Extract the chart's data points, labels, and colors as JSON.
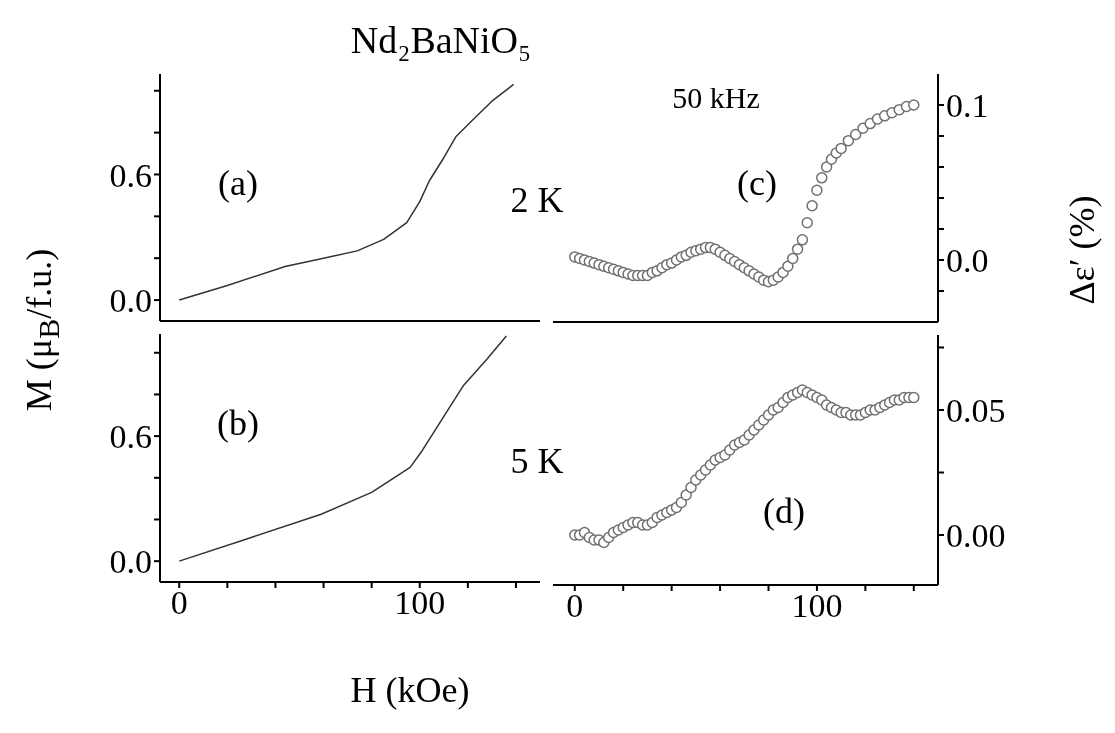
{
  "chart_data": [
    {
      "type": "line",
      "title": "Nd₂BaNiO₅",
      "ylabel": "M (μ$_{B}$/f.u.)",
      "annotations": [
        "(a)",
        "2 K"
      ],
      "tick_labels": "y",
      "marker": "none",
      "line_style": "solid",
      "x": [
        0,
        20,
        44,
        60,
        74,
        85,
        94.6,
        100,
        104,
        110,
        115,
        122,
        130,
        139
      ],
      "series": [
        {
          "color": "#333333",
          "values": [
            0,
            0.07,
            0.16,
            0.2,
            0.235,
            0.29,
            0.37,
            0.47,
            0.57,
            0.68,
            0.78,
            0.86,
            0.95,
            1.03
          ]
        }
      ],
      "xlim": [
        -8,
        150
      ],
      "xticks": [
        {
          "value": 0,
          "label": null
        },
        {
          "value": 20,
          "label": null
        },
        {
          "value": 40,
          "label": null
        },
        {
          "value": 60,
          "label": null
        },
        {
          "value": 80,
          "label": null
        },
        {
          "value": 100,
          "label": null
        },
        {
          "value": 120,
          "label": null
        },
        {
          "value": 140,
          "label": null
        }
      ],
      "ylim": [
        -0.1,
        1.08
      ],
      "yticks": [
        {
          "value": 0,
          "label": "0.0"
        },
        {
          "value": 0.2,
          "label": null
        },
        {
          "value": 0.4,
          "label": null
        },
        {
          "value": 0.6,
          "label": "0.6"
        },
        {
          "value": 0.8,
          "label": null
        },
        {
          "value": 1.0,
          "label": null
        }
      ]
    },
    {
      "type": "scatter",
      "ylabel": "Δε′ (%)",
      "annotations": [
        "50 kHz",
        "(c)"
      ],
      "tick_labels": "y",
      "marker": "circle",
      "x": [
        0,
        2,
        4,
        6,
        8,
        10,
        12,
        14,
        16,
        18,
        20,
        22,
        24,
        26,
        28,
        30,
        32,
        34,
        36,
        38,
        40,
        42,
        44,
        46,
        48,
        50,
        52,
        54,
        56,
        58,
        60,
        62,
        64,
        66,
        68,
        70,
        72,
        74,
        76,
        78,
        80,
        82,
        84,
        86,
        88,
        90,
        92,
        94,
        96,
        98,
        100,
        102,
        104,
        106,
        108,
        110,
        113,
        116,
        119,
        122,
        125,
        128,
        131,
        134,
        137,
        140
      ],
      "series": [
        {
          "color": "#707070",
          "values": [
            0.002,
            0.001,
            0.0,
            -0.001,
            -0.002,
            -0.003,
            -0.004,
            -0.005,
            -0.006,
            -0.007,
            -0.008,
            -0.009,
            -0.01,
            -0.01,
            -0.01,
            -0.01,
            -0.008,
            -0.007,
            -0.005,
            -0.003,
            -0.002,
            0.0,
            0.002,
            0.003,
            0.005,
            0.006,
            0.007,
            0.008,
            0.008,
            0.007,
            0.005,
            0.003,
            0.001,
            -0.001,
            -0.003,
            -0.005,
            -0.007,
            -0.009,
            -0.011,
            -0.013,
            -0.014,
            -0.013,
            -0.011,
            -0.008,
            -0.004,
            0.001,
            0.007,
            0.013,
            0.024,
            0.035,
            0.045,
            0.053,
            0.06,
            0.065,
            0.069,
            0.072,
            0.077,
            0.081,
            0.085,
            0.088,
            0.091,
            0.093,
            0.095,
            0.097,
            0.099,
            0.1
          ]
        }
      ],
      "xlim": [
        -9,
        150
      ],
      "xticks": [
        {
          "value": 0,
          "label": null
        },
        {
          "value": 20,
          "label": null
        },
        {
          "value": 40,
          "label": null
        },
        {
          "value": 60,
          "label": null
        },
        {
          "value": 80,
          "label": null
        },
        {
          "value": 100,
          "label": null
        },
        {
          "value": 120,
          "label": null
        },
        {
          "value": 140,
          "label": null
        }
      ],
      "ylim": [
        -0.04,
        0.12
      ],
      "yticks": [
        {
          "value": -0.02,
          "label": null
        },
        {
          "value": 0,
          "label": "0.0"
        },
        {
          "value": 0.02,
          "label": null
        },
        {
          "value": 0.04,
          "label": null
        },
        {
          "value": 0.06,
          "label": null
        },
        {
          "value": 0.08,
          "label": null
        },
        {
          "value": 0.1,
          "label": "0.1"
        }
      ]
    },
    {
      "type": "line",
      "xlabel": "H (kOe)",
      "annotations": [
        "(b)",
        "5 K"
      ],
      "marker": "none",
      "line_style": "solid",
      "x": [
        0,
        29,
        59,
        80,
        96,
        101,
        107,
        118,
        128,
        136
      ],
      "series": [
        {
          "color": "#333333",
          "values": [
            0,
            0.11,
            0.225,
            0.33,
            0.45,
            0.53,
            0.64,
            0.84,
            0.97,
            1.08
          ]
        }
      ],
      "xlim": [
        -8,
        150
      ],
      "xticks": [
        {
          "value": 0,
          "label": "0"
        },
        {
          "value": 20,
          "label": null
        },
        {
          "value": 40,
          "label": null
        },
        {
          "value": 60,
          "label": null
        },
        {
          "value": 80,
          "label": null
        },
        {
          "value": 100,
          "label": "100"
        },
        {
          "value": 120,
          "label": null
        },
        {
          "value": 140,
          "label": null
        }
      ],
      "ylim": [
        -0.1,
        1.09
      ],
      "yticks": [
        {
          "value": 0,
          "label": "0.0"
        },
        {
          "value": 0.2,
          "label": null
        },
        {
          "value": 0.4,
          "label": null
        },
        {
          "value": 0.6,
          "label": "0.6"
        },
        {
          "value": 0.8,
          "label": null
        },
        {
          "value": 1.0,
          "label": null
        }
      ]
    },
    {
      "type": "scatter",
      "annotations": [
        "(d)"
      ],
      "marker": "circle",
      "x": [
        0,
        2,
        4,
        6,
        8,
        10,
        12,
        14,
        16,
        18,
        20,
        22,
        24,
        26,
        28,
        30,
        32,
        34,
        36,
        38,
        40,
        42,
        44,
        46,
        48,
        50,
        52,
        54,
        56,
        58,
        60,
        62,
        64,
        66,
        68,
        70,
        72,
        74,
        76,
        78,
        80,
        82,
        84,
        86,
        88,
        90,
        92,
        94,
        96,
        98,
        100,
        102,
        104,
        106,
        108,
        110,
        112,
        114,
        116,
        118,
        120,
        122,
        124,
        126,
        128,
        130,
        132,
        134,
        136,
        138,
        140
      ],
      "series": [
        {
          "color": "#707070",
          "values": [
            0.0,
            0.0,
            0.001,
            -0.001,
            -0.002,
            -0.002,
            -0.003,
            -0.001,
            0.001,
            0.002,
            0.003,
            0.004,
            0.005,
            0.005,
            0.004,
            0.004,
            0.005,
            0.007,
            0.008,
            0.009,
            0.01,
            0.011,
            0.013,
            0.016,
            0.019,
            0.022,
            0.024,
            0.026,
            0.028,
            0.03,
            0.031,
            0.032,
            0.034,
            0.036,
            0.037,
            0.038,
            0.04,
            0.042,
            0.044,
            0.046,
            0.048,
            0.05,
            0.051,
            0.053,
            0.055,
            0.056,
            0.057,
            0.058,
            0.057,
            0.056,
            0.055,
            0.054,
            0.052,
            0.051,
            0.05,
            0.049,
            0.049,
            0.048,
            0.048,
            0.048,
            0.049,
            0.05,
            0.05,
            0.051,
            0.052,
            0.053,
            0.054,
            0.054,
            0.055,
            0.055,
            0.055
          ]
        }
      ],
      "xlim": [
        -9,
        150
      ],
      "xticks": [
        {
          "value": 0,
          "label": "0"
        },
        {
          "value": 20,
          "label": null
        },
        {
          "value": 40,
          "label": null
        },
        {
          "value": 60,
          "label": null
        },
        {
          "value": 80,
          "label": null
        },
        {
          "value": 100,
          "label": "100"
        },
        {
          "value": 120,
          "label": null
        },
        {
          "value": 140,
          "label": null
        }
      ],
      "ylim": [
        -0.02,
        0.08
      ],
      "yticks": [
        {
          "value": 0,
          "label": "0.00"
        },
        {
          "value": 0.025,
          "label": null
        },
        {
          "value": 0.05,
          "label": "0.05"
        },
        {
          "value": 0.075,
          "label": null
        }
      ]
    }
  ]
}
